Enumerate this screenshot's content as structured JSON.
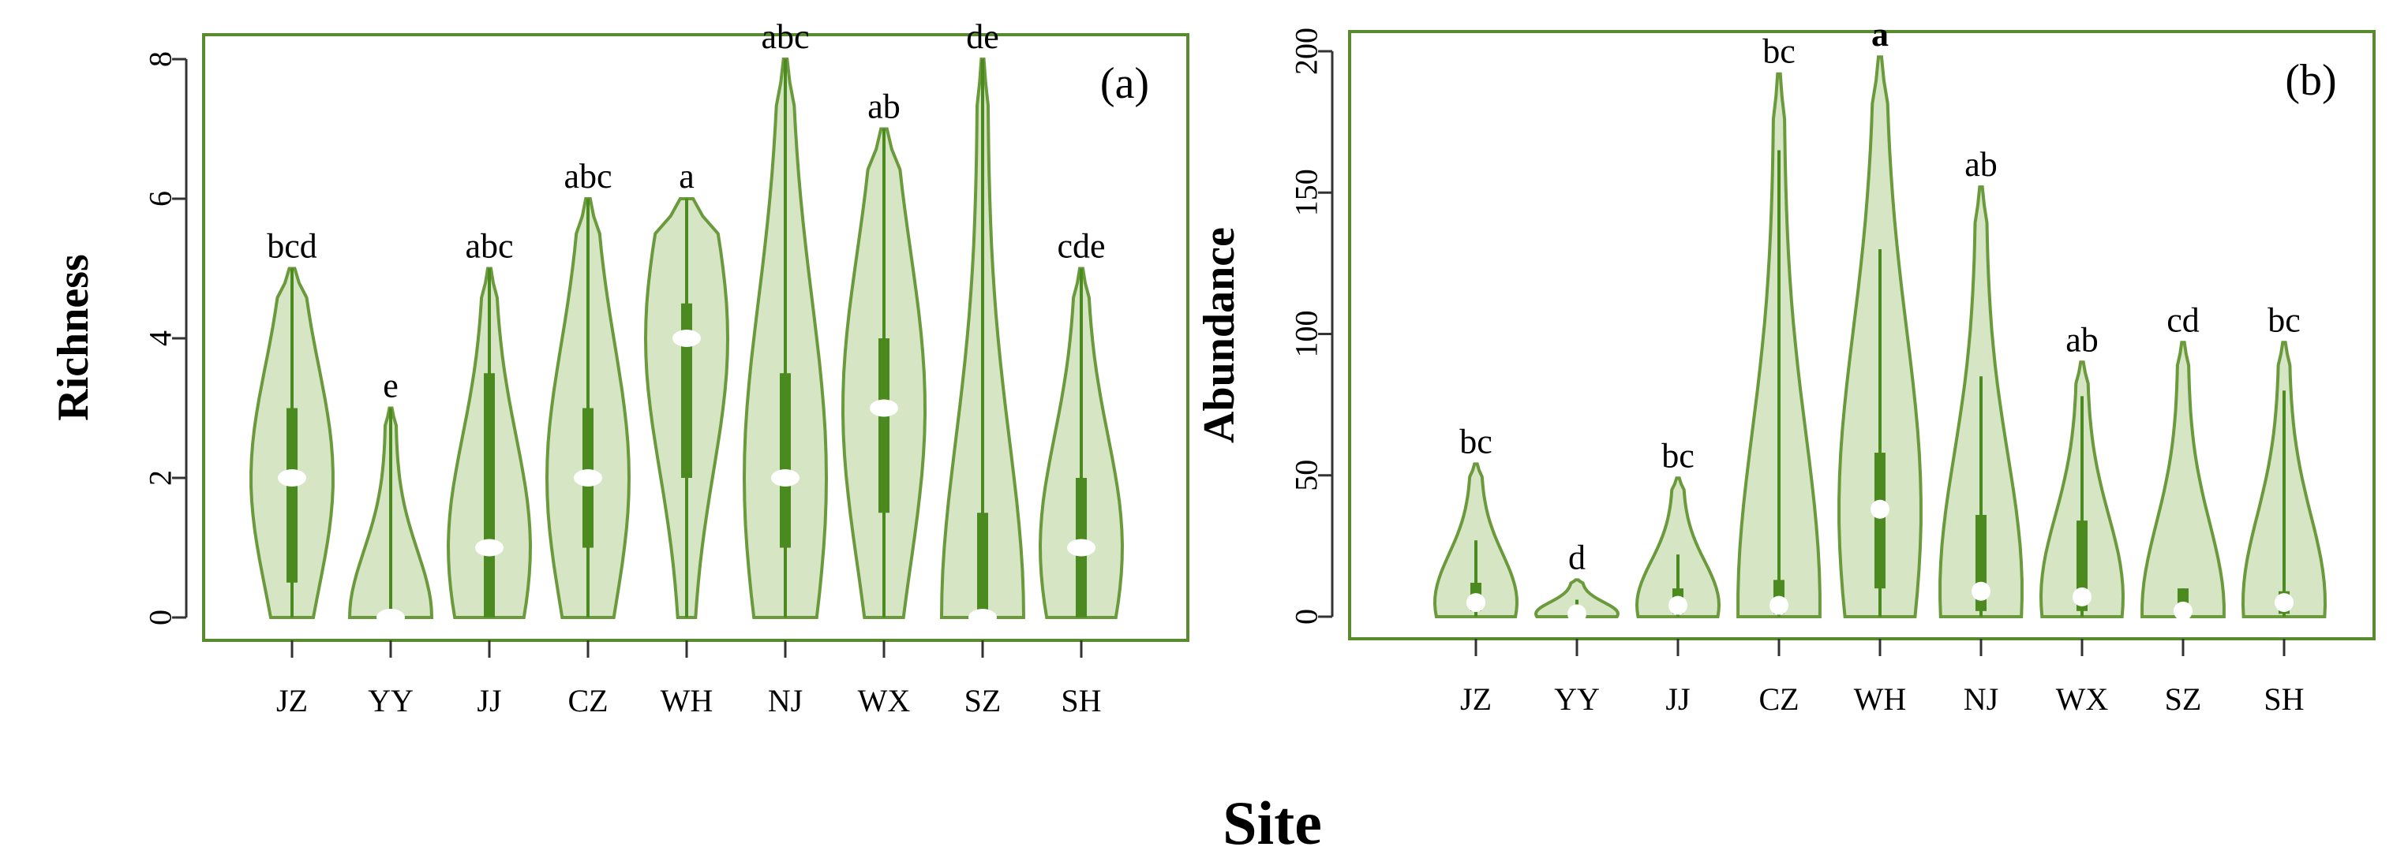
{
  "figure": {
    "xlabel": "Site"
  },
  "colors": {
    "frame": "#5a8a2e",
    "violin_fill": "#d6e6c4",
    "violin_edge": "#6a9a3c",
    "bar": "#4a8a1e",
    "median": "#ffffff",
    "text": "#000000"
  },
  "chart_data": [
    {
      "type": "violin",
      "panel_label": "(a)",
      "ylabel": "Richness",
      "xlabel": "",
      "ylim": [
        0,
        8
      ],
      "yticks": [
        0,
        2,
        4,
        6,
        8
      ],
      "categories": [
        "JZ",
        "YY",
        "JJ",
        "CZ",
        "WH",
        "NJ",
        "WX",
        "SZ",
        "SH"
      ],
      "letters": [
        "bcd",
        "e",
        "abc",
        "abc",
        "a",
        "abc",
        "ab",
        "de",
        "cde"
      ],
      "max": [
        5,
        3,
        5,
        6,
        6,
        8,
        7,
        8,
        5
      ],
      "median": [
        2,
        0,
        1,
        2,
        4,
        2,
        3,
        0,
        1
      ],
      "q1": [
        0.5,
        0,
        0,
        1,
        2,
        1,
        1.5,
        0,
        0
      ],
      "q3": [
        3,
        0,
        3.5,
        3,
        4.5,
        3.5,
        4,
        1.5,
        2
      ],
      "whisker": [
        5,
        3,
        5,
        6,
        6,
        8,
        7,
        8,
        5
      ]
    },
    {
      "type": "violin",
      "panel_label": "(b)",
      "ylabel": "Abundance",
      "xlabel": "",
      "ylim": [
        0,
        200
      ],
      "yticks": [
        0,
        50,
        100,
        150,
        200
      ],
      "categories": [
        "JZ",
        "YY",
        "JJ",
        "CZ",
        "WH",
        "NJ",
        "WX",
        "SZ",
        "SH"
      ],
      "letters": [
        "bc",
        "d",
        "bc",
        "bc",
        "a",
        "ab",
        "ab",
        "cd",
        "bc"
      ],
      "max": [
        54,
        13,
        49,
        192,
        198,
        152,
        90,
        97,
        97
      ],
      "median": [
        5,
        1,
        4,
        4,
        38,
        9,
        7,
        2,
        5
      ],
      "q1": [
        2,
        0,
        1,
        1,
        10,
        2,
        2,
        0,
        1
      ],
      "q3": [
        12,
        2,
        10,
        13,
        58,
        36,
        34,
        10,
        9
      ],
      "whisker": [
        27,
        6,
        22,
        165,
        130,
        85,
        78,
        10,
        80
      ]
    }
  ]
}
